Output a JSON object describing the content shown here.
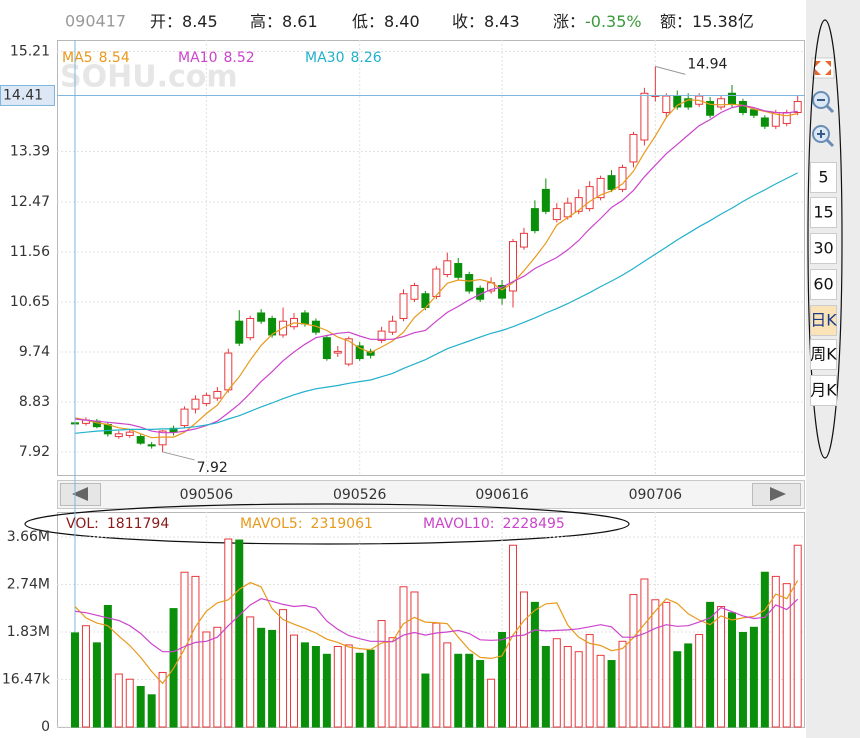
{
  "header": {
    "code": "090417",
    "items": [
      {
        "label": "开：",
        "value": "8.45"
      },
      {
        "label": "高：",
        "value": "8.61"
      },
      {
        "label": "低：",
        "value": "8.40"
      },
      {
        "label": "收：",
        "value": "8.43"
      },
      {
        "label": "涨：",
        "value": "-0.35%",
        "color": "#3a9a3a"
      },
      {
        "label": "额：",
        "value": "15.38亿"
      }
    ]
  },
  "watermark": "SOHU.com",
  "toolbar": [
    "5",
    "15",
    "30",
    "60",
    "日K",
    "周K",
    "月K"
  ],
  "toolbar_active": "日K",
  "chart_data": [
    {
      "type": "candlestick",
      "up_color": "#e8383d",
      "down_color": "#0a8f0a",
      "categories": [
        null,
        null,
        null,
        null,
        null,
        null,
        null,
        null,
        null,
        null,
        null,
        null,
        "090506",
        null,
        null,
        null,
        null,
        null,
        null,
        null,
        null,
        null,
        null,
        null,
        null,
        null,
        "090526",
        null,
        null,
        null,
        null,
        null,
        null,
        null,
        null,
        null,
        null,
        null,
        null,
        "090616",
        null,
        null,
        null,
        null,
        null,
        null,
        null,
        null,
        null,
        null,
        null,
        null,
        null,
        "090706",
        null,
        null,
        null,
        null,
        null,
        null,
        null,
        null,
        null,
        null,
        null,
        null,
        null
      ],
      "open": [
        8.45,
        8.44,
        8.48,
        8.42,
        8.2,
        8.22,
        8.2,
        8.05,
        8.05,
        8.35,
        8.4,
        8.7,
        8.8,
        8.9,
        9.05,
        10.3,
        10.0,
        10.45,
        10.35,
        10.05,
        10.2,
        10.45,
        10.3,
        10.0,
        9.72,
        9.52,
        9.85,
        9.75,
        9.95,
        10.1,
        10.35,
        10.7,
        10.8,
        10.75,
        11.15,
        11.35,
        11.15,
        10.9,
        10.85,
        10.95,
        10.85,
        11.65,
        12.35,
        12.7,
        12.15,
        12.2,
        12.3,
        12.35,
        12.55,
        12.95,
        12.7,
        13.2,
        13.6,
        14.4,
        14.1,
        14.4,
        14.35,
        14.25,
        14.3,
        14.2,
        14.45,
        14.3,
        14.15,
        14.0,
        13.85,
        13.9,
        14.1
      ],
      "high": [
        8.61,
        8.55,
        8.52,
        8.46,
        8.3,
        8.32,
        8.24,
        8.1,
        8.32,
        8.4,
        8.75,
        8.95,
        9.0,
        9.1,
        9.8,
        10.5,
        10.4,
        10.52,
        10.4,
        10.55,
        10.45,
        10.5,
        10.35,
        10.05,
        9.85,
        10.02,
        9.92,
        9.8,
        10.2,
        10.4,
        10.88,
        11.0,
        10.85,
        11.3,
        11.55,
        11.45,
        11.2,
        10.95,
        11.1,
        11.05,
        11.8,
        12.0,
        12.5,
        12.9,
        12.45,
        12.55,
        12.7,
        12.85,
        12.95,
        13.05,
        13.15,
        13.75,
        14.55,
        14.94,
        14.45,
        14.5,
        14.45,
        14.45,
        14.38,
        14.4,
        14.6,
        14.35,
        14.2,
        14.05,
        14.15,
        14.15,
        14.4
      ],
      "low": [
        8.4,
        8.4,
        8.35,
        8.2,
        8.16,
        8.18,
        8.05,
        7.98,
        7.92,
        8.22,
        8.35,
        8.62,
        8.75,
        8.85,
        9.0,
        9.85,
        9.95,
        10.25,
        10.0,
        10.0,
        10.15,
        10.2,
        10.05,
        9.58,
        9.65,
        9.48,
        9.58,
        9.62,
        9.9,
        10.05,
        10.3,
        10.65,
        10.5,
        10.7,
        11.1,
        11.05,
        10.8,
        10.65,
        10.8,
        10.6,
        10.55,
        11.6,
        11.9,
        12.25,
        12.1,
        12.15,
        12.25,
        12.3,
        12.5,
        12.65,
        12.65,
        13.1,
        13.5,
        14.3,
        14.0,
        14.15,
        14.15,
        14.2,
        14.0,
        14.15,
        14.2,
        14.05,
        14.0,
        13.8,
        13.8,
        13.85,
        14.05
      ],
      "close": [
        8.43,
        8.5,
        8.38,
        8.25,
        8.25,
        8.28,
        8.08,
        8.03,
        8.3,
        8.28,
        8.7,
        8.88,
        8.95,
        9.02,
        9.72,
        9.9,
        10.35,
        10.3,
        10.05,
        10.3,
        10.35,
        10.25,
        10.1,
        9.62,
        9.75,
        9.98,
        9.62,
        9.68,
        10.12,
        10.3,
        10.8,
        10.95,
        10.55,
        11.25,
        11.4,
        11.1,
        10.85,
        10.7,
        11.0,
        10.72,
        11.75,
        11.9,
        11.95,
        12.3,
        12.35,
        12.45,
        12.55,
        12.75,
        12.9,
        12.7,
        13.1,
        13.7,
        14.45,
        14.41,
        14.4,
        14.2,
        14.2,
        14.4,
        14.05,
        14.35,
        14.25,
        14.1,
        14.05,
        13.85,
        14.1,
        14.1,
        14.3
      ],
      "series": [
        {
          "name": "MA5",
          "color": "#e89a1c",
          "values": [
            8.54,
            8.5,
            8.45,
            8.42,
            8.36,
            8.33,
            8.25,
            8.18,
            8.19,
            8.19,
            8.28,
            8.44,
            8.62,
            8.77,
            9.05,
            9.29,
            9.59,
            9.86,
            10.06,
            10.18,
            10.27,
            10.25,
            10.21,
            10.13,
            10.01,
            9.94,
            9.81,
            9.73,
            9.83,
            9.94,
            10.1,
            10.37,
            10.54,
            10.77,
            10.99,
            11.05,
            11.03,
            11.06,
            11.01,
            10.87,
            11.0,
            11.22,
            11.46,
            11.72,
            12.05,
            12.19,
            12.32,
            12.48,
            12.6,
            12.67,
            12.8,
            13.03,
            13.37,
            13.67,
            14.01,
            14.23,
            14.33,
            14.32,
            14.25,
            14.24,
            14.25,
            14.23,
            14.16,
            14.12,
            14.07,
            14.04,
            14.08
          ]
        },
        {
          "name": "MA10",
          "color": "#cc44cc",
          "values": [
            8.52,
            8.5,
            8.48,
            8.46,
            8.44,
            8.42,
            8.37,
            8.3,
            8.27,
            8.27,
            8.3,
            8.34,
            8.4,
            8.48,
            8.63,
            8.79,
            8.99,
            9.2,
            9.38,
            9.58,
            9.74,
            9.88,
            10.0,
            10.04,
            10.08,
            10.1,
            10.03,
            9.97,
            9.97,
            9.97,
            10.02,
            10.09,
            10.13,
            10.3,
            10.46,
            10.57,
            10.69,
            10.79,
            10.88,
            10.92,
            11.02,
            11.12,
            11.26,
            11.36,
            11.46,
            11.6,
            11.77,
            11.98,
            12.17,
            12.37,
            12.5,
            12.68,
            12.93,
            13.14,
            13.35,
            13.52,
            13.69,
            13.86,
            13.97,
            14.1,
            14.19,
            14.23,
            14.19,
            14.13,
            14.1,
            14.09,
            14.12
          ]
        },
        {
          "name": "MA30",
          "color": "#22b0cc",
          "values": [
            8.26,
            8.28,
            8.3,
            8.31,
            8.32,
            8.33,
            8.33,
            8.33,
            8.34,
            8.34,
            8.36,
            8.38,
            8.41,
            8.45,
            8.52,
            8.58,
            8.66,
            8.74,
            8.81,
            8.89,
            8.96,
            9.02,
            9.07,
            9.1,
            9.13,
            9.17,
            9.2,
            9.23,
            9.29,
            9.35,
            9.44,
            9.52,
            9.6,
            9.7,
            9.8,
            9.87,
            9.94,
            10.01,
            10.08,
            10.13,
            10.2,
            10.28,
            10.36,
            10.45,
            10.53,
            10.62,
            10.72,
            10.82,
            10.93,
            11.03,
            11.14,
            11.26,
            11.39,
            11.52,
            11.65,
            11.78,
            11.9,
            12.02,
            12.13,
            12.25,
            12.36,
            12.48,
            12.59,
            12.69,
            12.8,
            12.9,
            13.0
          ]
        }
      ],
      "ylim": [
        7.5,
        15.42
      ],
      "yticks": [
        15.21,
        13.39,
        12.47,
        11.56,
        10.65,
        9.74,
        8.83,
        7.92
      ],
      "grid": true,
      "crosshair": {
        "y": 14.41
      }
    },
    {
      "type": "bar",
      "series": [
        {
          "name": "VOL:",
          "color": "#8b1a1a",
          "values": [
            1811794,
            1950000,
            1620000,
            2340000,
            1020000,
            920000,
            780000,
            620000,
            1050000,
            2280000,
            2980000,
            2900000,
            1830000,
            1920000,
            3620000,
            3600000,
            2120000,
            1900000,
            1860000,
            2260000,
            1770000,
            1620000,
            1550000,
            1400000,
            1550000,
            1580000,
            1420000,
            1480000,
            2050000,
            1720000,
            2700000,
            2600000,
            1020000,
            2000000,
            1620000,
            1400000,
            1400000,
            1280000,
            920000,
            1820000,
            3500000,
            2600000,
            2400000,
            1550000,
            1700000,
            1550000,
            1450000,
            1780000,
            1380000,
            1280000,
            1650000,
            2550000,
            2850000,
            2450000,
            2400000,
            1450000,
            1600000,
            1780000,
            2400000,
            2320000,
            2200000,
            1820000,
            1920000,
            2980000,
            2900000,
            2760000,
            3500000
          ]
        },
        {
          "name": "MAVOL5:",
          "color": "#e89a1c",
          "values": [
            2319061,
            2100000,
            2000000,
            1950000,
            1750000,
            1570000,
            1340000,
            1070000,
            840000,
            1130000,
            1500000,
            1930000,
            2230000,
            2390000,
            2450000,
            2650000,
            2780000,
            2700000,
            2280000,
            2070000,
            1980000,
            1900000,
            1810000,
            1690000,
            1630000,
            1540000,
            1510000,
            1490000,
            1620000,
            1650000,
            1990000,
            2110000,
            2020000,
            2010000,
            1990000,
            1730000,
            1490000,
            1340000,
            1320000,
            1370000,
            1770000,
            2050000,
            2250000,
            2370000,
            2390000,
            1960000,
            1730000,
            1610000,
            1570000,
            1470000,
            1510000,
            1720000,
            1980000,
            2230000,
            2470000,
            2380000,
            2180000,
            2060000,
            1970000,
            2140000,
            2060000,
            2100000,
            2130000,
            2250000,
            2560000,
            2470000,
            2820000
          ]
        },
        {
          "name": "MAVOL10:",
          "color": "#cc44cc",
          "values": [
            2228495,
            2200000,
            2150000,
            2100000,
            2050000,
            1950000,
            1800000,
            1600000,
            1450000,
            1450000,
            1550000,
            1630000,
            1650000,
            1730000,
            1950000,
            2150000,
            2350000,
            2470000,
            2420000,
            2360000,
            2320000,
            2340000,
            2290000,
            2040000,
            1880000,
            1760000,
            1700000,
            1650000,
            1650000,
            1640000,
            1770000,
            1820000,
            1770000,
            1810000,
            1830000,
            1860000,
            1800000,
            1680000,
            1670000,
            1680000,
            1750000,
            1770000,
            1870000,
            1850000,
            1860000,
            1870000,
            1890000,
            1930000,
            1970000,
            1930000,
            1730000,
            1730000,
            1800000,
            1900000,
            1970000,
            1940000,
            1950000,
            2020000,
            2100000,
            2300000,
            2220000,
            2140000,
            2090000,
            2110000,
            2350000,
            2260000,
            2460000
          ]
        }
      ],
      "ylim": [
        0,
        4140000
      ],
      "y_axis_labels": [
        "3.66M",
        "2.74M",
        "1.83M",
        "16.47k",
        "0"
      ]
    }
  ]
}
